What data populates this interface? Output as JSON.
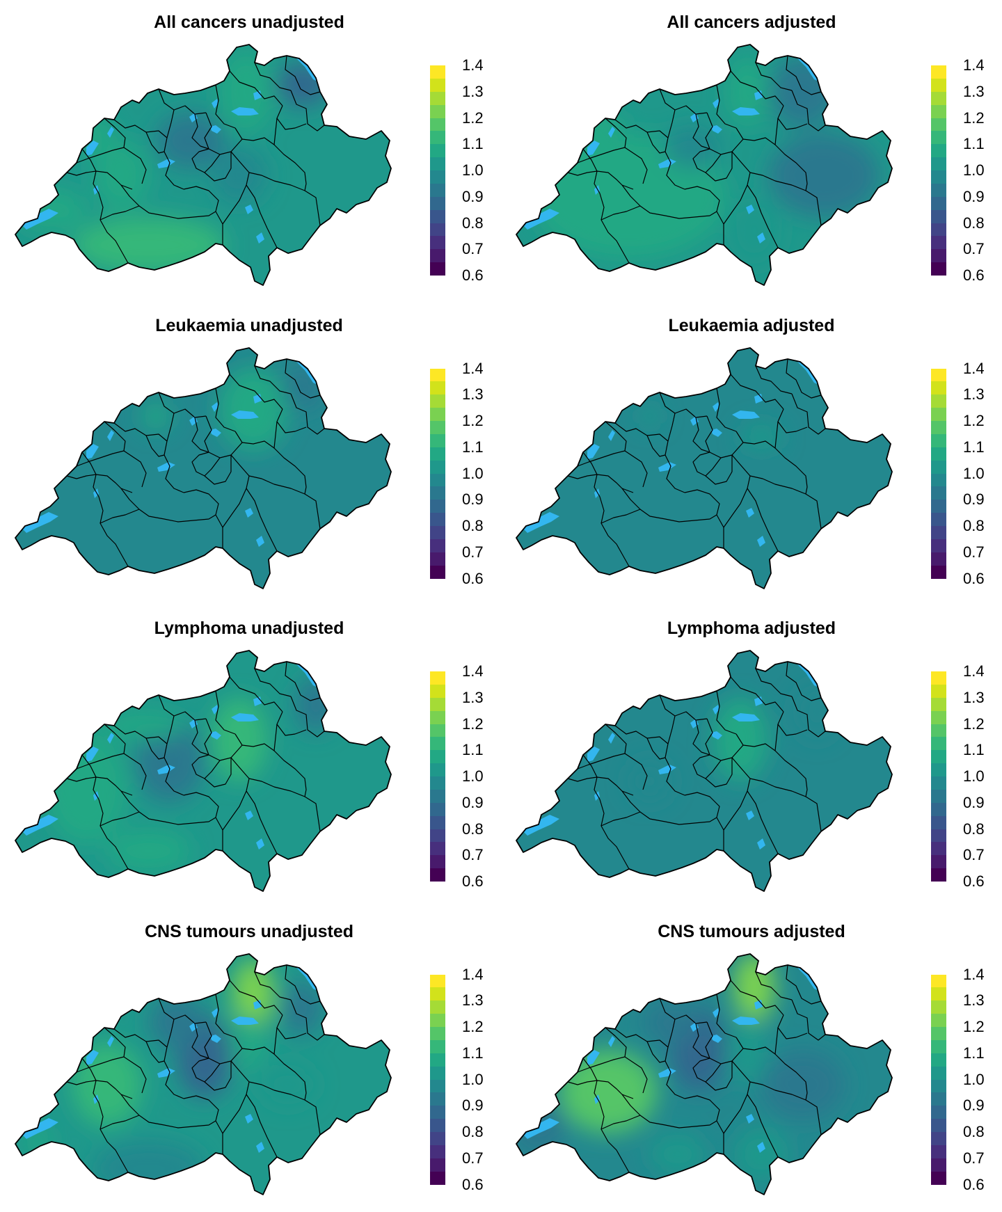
{
  "panels": [
    {
      "id": "all-unadj",
      "title": "All cancers unadjusted",
      "variant": "allU"
    },
    {
      "id": "all-adj",
      "title": "All cancers adjusted",
      "variant": "allA"
    },
    {
      "id": "leuk-unadj",
      "title": "Leukaemia unadjusted",
      "variant": "leukU"
    },
    {
      "id": "leuk-adj",
      "title": "Leukaemia adjusted",
      "variant": "leukA"
    },
    {
      "id": "lymph-unadj",
      "title": "Lymphoma unadjusted",
      "variant": "lymphU"
    },
    {
      "id": "lymph-adj",
      "title": "Lymphoma adjusted",
      "variant": "lymphA"
    },
    {
      "id": "cns-unadj",
      "title": "CNS tumours unadjusted",
      "variant": "cnsU"
    },
    {
      "id": "cns-adj",
      "title": "CNS tumours adjusted",
      "variant": "cnsA"
    }
  ],
  "legend": {
    "ticks": [
      "1.4",
      "1.3",
      "1.2",
      "1.1",
      "1.0",
      "0.9",
      "0.8",
      "0.7",
      "0.6"
    ],
    "min": 0.6,
    "max": 1.4,
    "colors": [
      "#fde725",
      "#d2e21b",
      "#a5db36",
      "#7ad151",
      "#54c568",
      "#35b779",
      "#22a884",
      "#1f988b",
      "#23888e",
      "#2a788e",
      "#31688e",
      "#39568c",
      "#414487",
      "#472f7d",
      "#481a6c",
      "#440154"
    ]
  },
  "colors": {
    "water": "#33b6ef",
    "border": "#000000"
  }
}
